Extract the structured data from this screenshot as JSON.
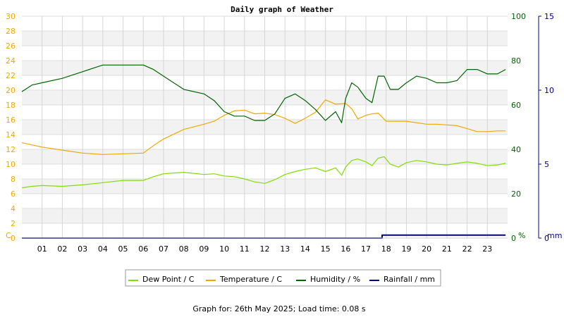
{
  "chart_data": {
    "type": "line",
    "title": "Daily graph of Weather",
    "x_ticks": [
      "01",
      "02",
      "03",
      "04",
      "05",
      "06",
      "07",
      "08",
      "09",
      "10",
      "11",
      "12",
      "13",
      "14",
      "15",
      "16",
      "17",
      "18",
      "19",
      "20",
      "21",
      "22",
      "23"
    ],
    "x_range": [
      0,
      24
    ],
    "axes": {
      "left": {
        "unit": "C",
        "ticks": [
          "0",
          "2",
          "4",
          "6",
          "8",
          "10",
          "12",
          "14",
          "16",
          "18",
          "20",
          "22",
          "24",
          "26",
          "28",
          "30"
        ],
        "range": [
          0,
          30
        ],
        "color": "#f0a800"
      },
      "right1": {
        "unit": "%",
        "ticks": [
          "0",
          "20",
          "40",
          "60",
          "80",
          "100"
        ],
        "range": [
          0,
          100
        ],
        "color": "#006400"
      },
      "right2": {
        "unit": "mm",
        "ticks": [
          "0",
          "5",
          "10",
          "15"
        ],
        "range": [
          0,
          15
        ],
        "color": "#00008b"
      }
    },
    "grid": true,
    "legend_position": "bottom",
    "series": [
      {
        "name": "Dew Point / C",
        "axis": "left",
        "color": "#7fdf00",
        "x": [
          0,
          0.5,
          1,
          2,
          3,
          4,
          5,
          6,
          6.5,
          7,
          8,
          9,
          9.5,
          10,
          10.5,
          11,
          11.5,
          12,
          12.5,
          13,
          13.5,
          14,
          14.5,
          15,
          15.5,
          15.8,
          16,
          16.3,
          16.6,
          17,
          17.3,
          17.6,
          17.9,
          18.2,
          18.6,
          19,
          19.5,
          20,
          20.5,
          21,
          21.5,
          22,
          22.5,
          23,
          23.5,
          23.9
        ],
        "values": [
          6.8,
          7.0,
          7.1,
          7.0,
          7.2,
          7.5,
          7.8,
          7.8,
          8.3,
          8.7,
          8.9,
          8.6,
          8.7,
          8.4,
          8.3,
          8.0,
          7.6,
          7.4,
          7.9,
          8.6,
          9.0,
          9.3,
          9.5,
          9.0,
          9.5,
          8.5,
          9.6,
          10.5,
          10.7,
          10.3,
          9.8,
          10.8,
          11.0,
          10.0,
          9.6,
          10.2,
          10.5,
          10.3,
          10.0,
          9.9,
          10.1,
          10.3,
          10.1,
          9.8,
          9.9,
          10.1
        ]
      },
      {
        "name": "Temperature / C",
        "axis": "left",
        "color": "#f0a800",
        "x": [
          0,
          0.5,
          1,
          2,
          3,
          4,
          5,
          6,
          6.5,
          7,
          8,
          9,
          9.5,
          10,
          10.5,
          11,
          11.5,
          12,
          12.5,
          13,
          13.5,
          14,
          14.5,
          15,
          15.5,
          16,
          16.3,
          16.6,
          17,
          17.3,
          17.6,
          18,
          18.5,
          19,
          19.5,
          20,
          20.5,
          21,
          21.5,
          22,
          22.5,
          23,
          23.5,
          23.9
        ],
        "values": [
          12.9,
          12.6,
          12.3,
          11.9,
          11.5,
          11.3,
          11.4,
          11.5,
          12.5,
          13.4,
          14.7,
          15.4,
          15.8,
          16.6,
          17.2,
          17.3,
          16.8,
          16.9,
          16.7,
          16.2,
          15.5,
          16.2,
          17.0,
          18.7,
          18.1,
          18.2,
          17.5,
          16.1,
          16.6,
          16.8,
          16.9,
          15.8,
          15.8,
          15.8,
          15.6,
          15.4,
          15.4,
          15.3,
          15.2,
          14.8,
          14.4,
          14.4,
          14.5,
          14.5
        ]
      },
      {
        "name": "Humidity / %",
        "axis": "right1",
        "color": "#006400",
        "x": [
          0,
          0.5,
          1,
          2,
          3,
          4,
          5,
          6,
          6.5,
          7,
          8,
          9,
          9.5,
          10,
          10.5,
          11,
          11.5,
          12,
          12.5,
          13,
          13.5,
          14,
          14.5,
          15,
          15.5,
          15.8,
          16,
          16.3,
          16.6,
          17,
          17.3,
          17.6,
          17.9,
          18.2,
          18.6,
          19,
          19.5,
          20,
          20.5,
          21,
          21.5,
          22,
          22.5,
          23,
          23.5,
          23.9
        ],
        "values": [
          66,
          69,
          70,
          72,
          75,
          78,
          78,
          78,
          76,
          73,
          67,
          65,
          62,
          57,
          55,
          55,
          53,
          53,
          56,
          63,
          65,
          62,
          58,
          53,
          57,
          52,
          63,
          70,
          68,
          63,
          61,
          73,
          73,
          67,
          67,
          70,
          73,
          72,
          70,
          70,
          71,
          76,
          76,
          74,
          74,
          76
        ]
      },
      {
        "name": "Rainfall / mm",
        "axis": "right2",
        "color": "#00008b",
        "x": [
          0,
          17.8,
          17.8,
          23.9
        ],
        "values": [
          0,
          0,
          0.2,
          0.2
        ]
      }
    ]
  },
  "footer": "Graph for: 26th May 2025; Load time: 0.08 s"
}
